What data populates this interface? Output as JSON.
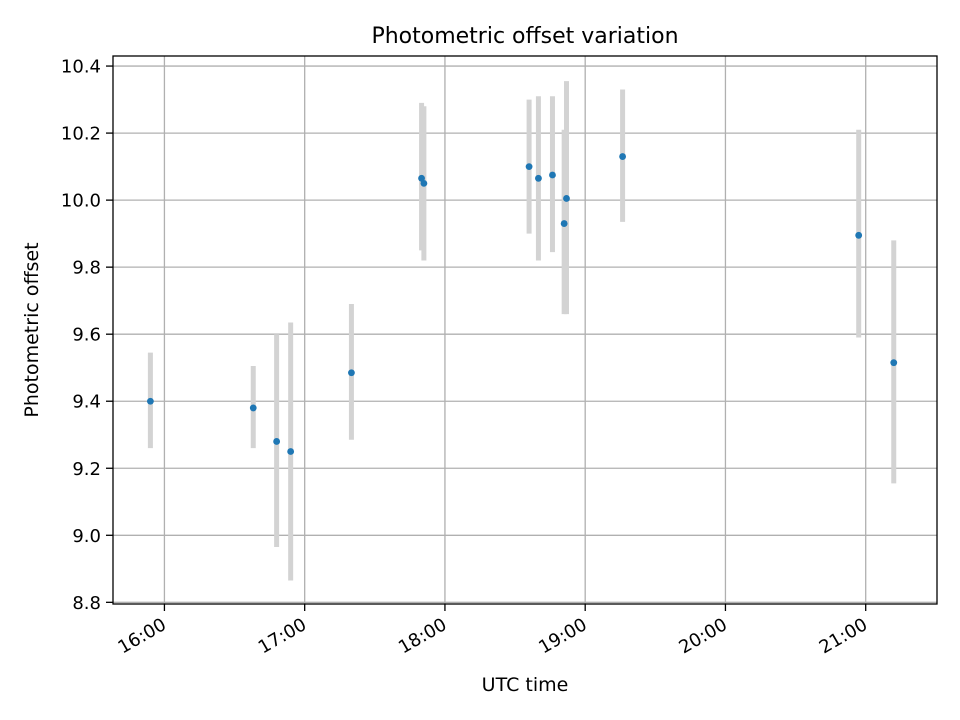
{
  "chart_data": {
    "type": "scatter",
    "title": "Photometric offset variation",
    "xlabel": "UTC time",
    "ylabel": "Photometric offset",
    "x_axis": {
      "ticks": [
        "16:00",
        "17:00",
        "18:00",
        "19:00",
        "20:00",
        "21:00"
      ],
      "tick_minutes": [
        960,
        1020,
        1080,
        1140,
        1200,
        1260
      ],
      "range_minutes": [
        938.0,
        1290.5
      ],
      "tick_label_rotation": 30
    },
    "y_axis": {
      "ticks": [
        "8.8",
        "9.0",
        "9.2",
        "9.4",
        "9.6",
        "9.8",
        "10.0",
        "10.2",
        "10.4"
      ],
      "tick_values": [
        8.8,
        9.0,
        9.2,
        9.4,
        9.6,
        9.8,
        10.0,
        10.2,
        10.4
      ],
      "ylim": [
        8.795,
        10.43
      ]
    },
    "grid": true,
    "legend": "none",
    "colors": {
      "point": "#1f77b4",
      "error_bar": "#d3d3d3",
      "grid": "#b0b0b0",
      "axes": "#000000"
    },
    "points": [
      {
        "time": "15:54",
        "y": 9.4,
        "ylow": 9.26,
        "yhigh": 9.545
      },
      {
        "time": "16:38",
        "y": 9.38,
        "ylow": 9.26,
        "yhigh": 9.505
      },
      {
        "time": "16:48",
        "y": 9.28,
        "ylow": 8.965,
        "yhigh": 9.6
      },
      {
        "time": "16:54",
        "y": 9.25,
        "ylow": 8.865,
        "yhigh": 9.635
      },
      {
        "time": "17:20",
        "y": 9.485,
        "ylow": 9.285,
        "yhigh": 9.69
      },
      {
        "time": "17:50",
        "y": 10.065,
        "ylow": 9.85,
        "yhigh": 10.29
      },
      {
        "time": "17:51",
        "y": 10.05,
        "ylow": 9.82,
        "yhigh": 10.28
      },
      {
        "time": "18:36",
        "y": 10.1,
        "ylow": 9.9,
        "yhigh": 10.3
      },
      {
        "time": "18:40",
        "y": 10.065,
        "ylow": 9.82,
        "yhigh": 10.31
      },
      {
        "time": "18:46",
        "y": 10.075,
        "ylow": 9.845,
        "yhigh": 10.31
      },
      {
        "time": "18:51",
        "y": 9.93,
        "ylow": 9.66,
        "yhigh": 10.21
      },
      {
        "time": "18:52",
        "y": 10.005,
        "ylow": 9.66,
        "yhigh": 10.355
      },
      {
        "time": "19:16",
        "y": 10.13,
        "ylow": 9.935,
        "yhigh": 10.33
      },
      {
        "time": "20:57",
        "y": 9.895,
        "ylow": 9.59,
        "yhigh": 10.21
      },
      {
        "time": "21:12",
        "y": 9.515,
        "ylow": 9.155,
        "yhigh": 9.88
      }
    ]
  }
}
